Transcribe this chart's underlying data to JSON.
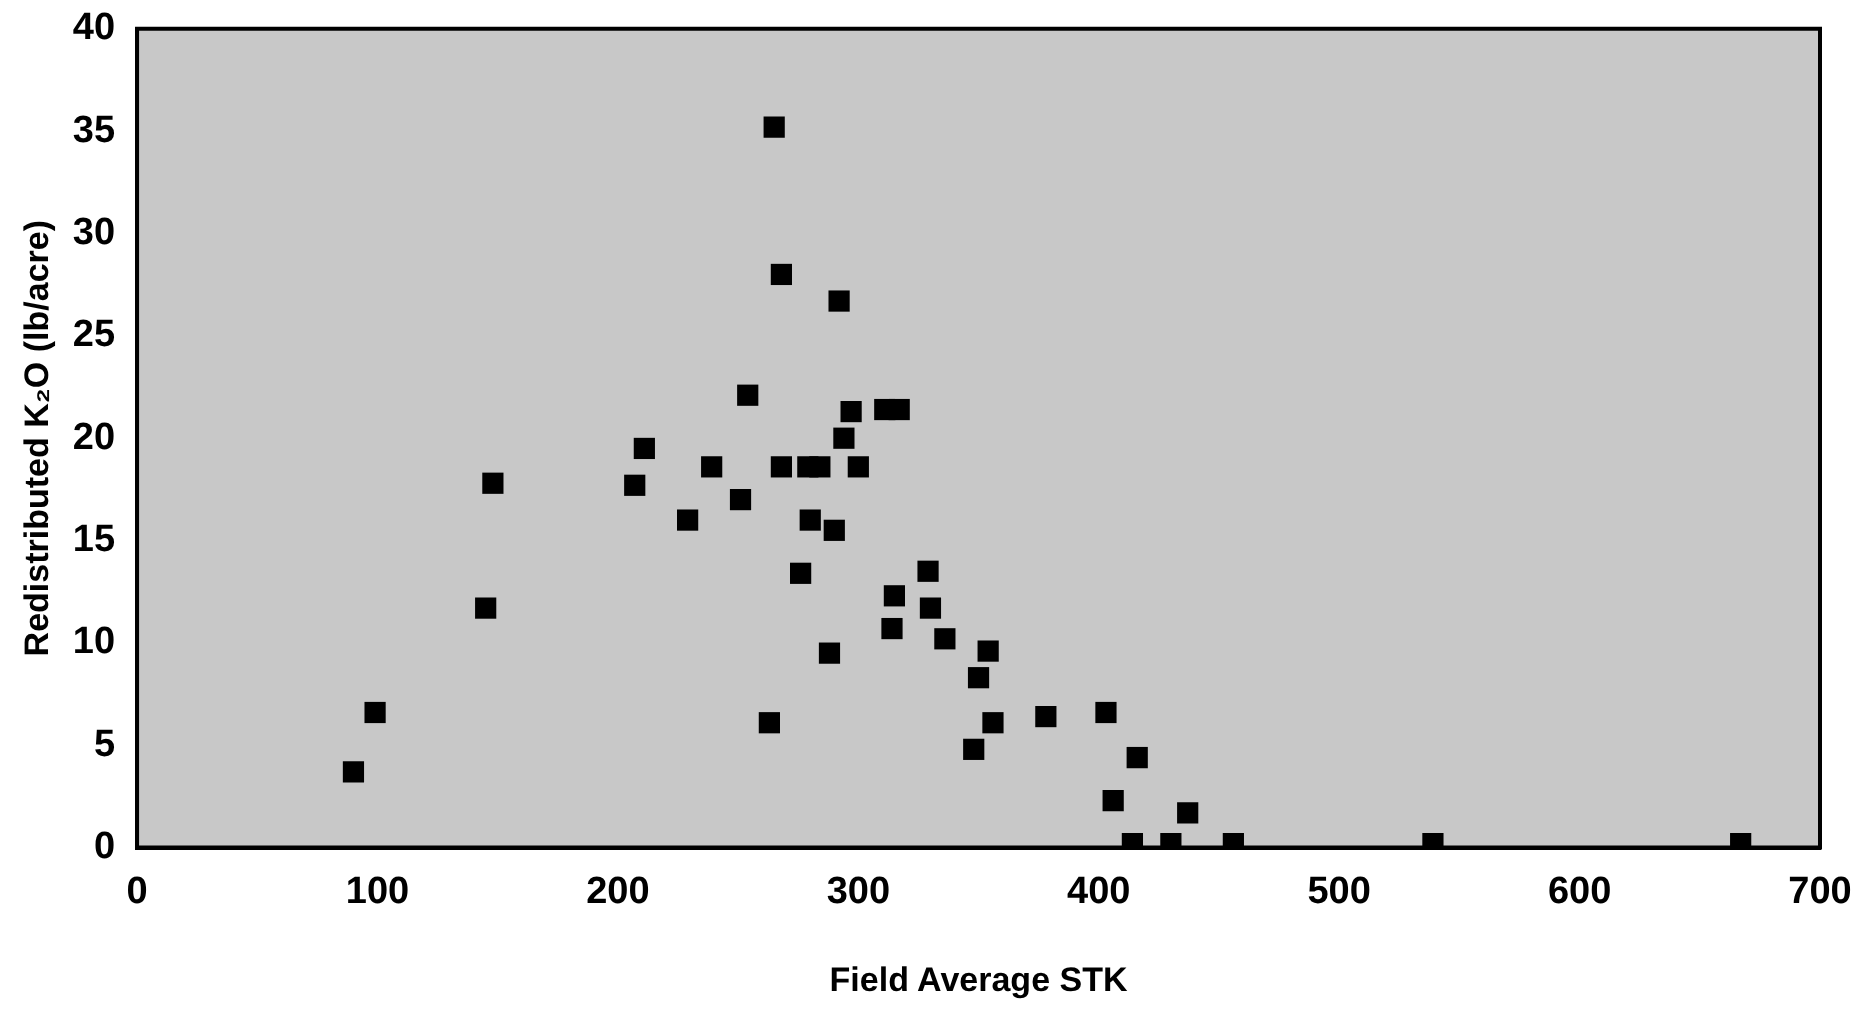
{
  "chart_data": {
    "type": "scatter",
    "xlabel": "Field Average STK",
    "ylabel": "Redistributed K₂O (lb/acre)",
    "x": [
      90,
      99,
      145,
      148,
      207,
      211,
      229,
      239,
      251,
      254,
      263,
      265,
      268,
      268,
      276,
      279,
      280,
      284,
      288,
      290,
      292,
      294,
      297,
      300,
      311,
      314,
      315,
      317,
      329,
      330,
      336,
      348,
      350,
      354,
      356,
      378,
      403,
      406,
      414,
      416,
      430,
      437,
      456,
      539,
      667
    ],
    "series": [
      {
        "color": "#000000",
        "values": [
          3.7,
          6.6,
          11.7,
          17.8,
          17.7,
          19.5,
          16,
          18.6,
          17,
          22.1,
          6.1,
          35.2,
          28,
          18.6,
          13.4,
          18.6,
          16,
          18.6,
          9.5,
          15.5,
          26.7,
          20,
          21.3,
          18.6,
          21.4,
          10.7,
          12.3,
          21.4,
          13.5,
          11.7,
          10.2,
          4.8,
          8.3,
          9.6,
          6.1,
          6.4,
          6.6,
          2.3,
          0.2,
          4.4,
          0.2,
          1.7,
          0.2,
          0.2,
          0.2
        ]
      }
    ],
    "xlim": [
      0,
      700
    ],
    "xticks": [
      0,
      100,
      200,
      300,
      400,
      500,
      600,
      700
    ],
    "ylim": [
      0,
      40
    ],
    "yticks": [
      0,
      5,
      10,
      15,
      20,
      25,
      30,
      35,
      40
    ],
    "grid": false,
    "legend": false,
    "marker": "square"
  }
}
